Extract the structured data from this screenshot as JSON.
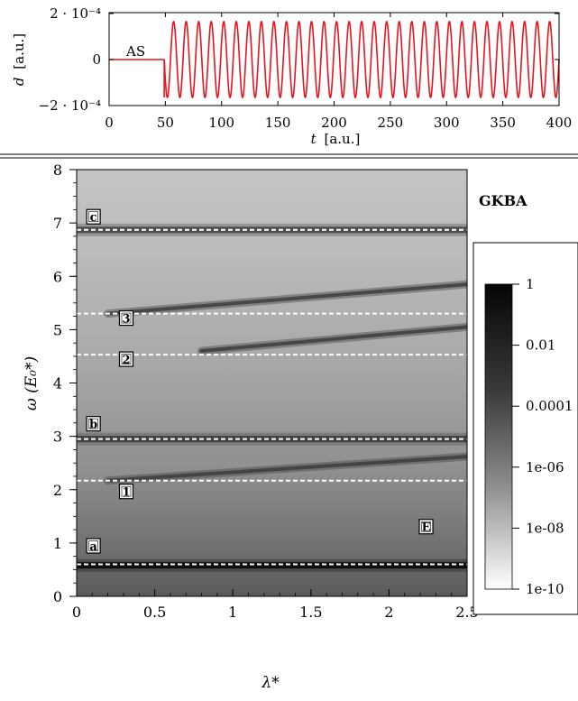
{
  "chart_data": [
    {
      "type": "line",
      "xlabel_var": "t",
      "xlabel_unit": "[a.u.]",
      "ylabel_var": "d",
      "ylabel_unit": "[a.u.]",
      "xlim": [
        0,
        400
      ],
      "ylim": [
        -0.0002,
        0.0002
      ],
      "x_ticks": [
        0,
        50,
        100,
        150,
        200,
        250,
        300,
        350,
        400
      ],
      "y_ticks": [
        {
          "value": 0.0002,
          "label": "2 · 10⁻⁴"
        },
        {
          "value": 0,
          "label": "0"
        },
        {
          "value": -0.0002,
          "label": "−2 · 10⁻⁴"
        }
      ],
      "annotation": "AS",
      "series": [
        {
          "color": "#e8141d",
          "segments": [
            {
              "x_range": [
                0,
                49
              ],
              "value": 0
            },
            {
              "x_range": [
                49,
                400
              ],
              "oscillation": {
                "amplitude": 0.000165,
                "cycles": 31.5
              }
            }
          ]
        }
      ]
    },
    {
      "type": "heatmap",
      "xlabel": "λ*",
      "ylabel": "ω (E₀*)",
      "xlim": [
        0,
        2.5
      ],
      "ylim": [
        0,
        8
      ],
      "x_ticks": [
        0,
        0.5,
        1,
        1.5,
        2,
        2.5
      ],
      "y_ticks": [
        0,
        1,
        2,
        3,
        4,
        5,
        6,
        7,
        8
      ],
      "title": "GKBA",
      "colorbar": {
        "scale": "log",
        "ticks": [
          "1",
          "0.01",
          "0.0001",
          "1e-06",
          "1e-08",
          "1e-10"
        ],
        "range": [
          1e-10,
          1
        ]
      },
      "dashed_lines_omega": [
        0.6,
        2.17,
        2.95,
        4.53,
        5.3,
        6.87
      ],
      "bands": [
        {
          "omega": 0.58,
          "intensity": 0.95
        },
        {
          "omega": 2.95,
          "intensity": 0.75
        },
        {
          "omega": 6.87,
          "intensity": 0.7
        }
      ],
      "sloped_bands": [
        {
          "from": [
            0.2,
            2.17
          ],
          "to": [
            2.5,
            2.62
          ]
        },
        {
          "from": [
            0.2,
            5.3
          ],
          "to": [
            2.5,
            5.85
          ]
        },
        {
          "from": [
            0.8,
            4.6
          ],
          "to": [
            2.5,
            5.05
          ]
        }
      ],
      "box_labels": [
        {
          "text": "c",
          "lambda": 0.07,
          "omega": 7.1
        },
        {
          "text": "3",
          "lambda": 0.28,
          "omega": 5.2
        },
        {
          "text": "2",
          "lambda": 0.28,
          "omega": 4.43
        },
        {
          "text": "b",
          "lambda": 0.07,
          "omega": 3.22
        },
        {
          "text": "1",
          "lambda": 0.28,
          "omega": 1.95
        },
        {
          "text": "E",
          "lambda": 2.2,
          "omega": 1.29
        },
        {
          "text": "a",
          "lambda": 0.07,
          "omega": 0.93
        }
      ]
    }
  ]
}
